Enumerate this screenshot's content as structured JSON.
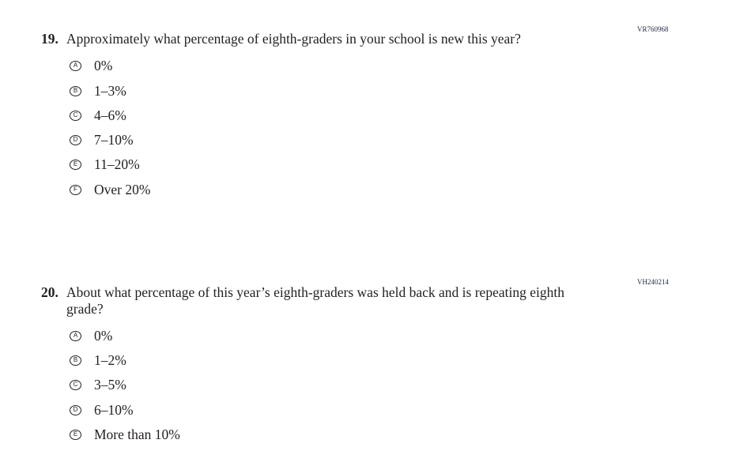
{
  "questions": [
    {
      "number": "19.",
      "code": "VR760968",
      "text": "Approximately what percentage of eighth-graders in your school is new this year?",
      "options": [
        {
          "letter": "A",
          "label": "0%"
        },
        {
          "letter": "B",
          "label": "1–3%"
        },
        {
          "letter": "C",
          "label": "4–6%"
        },
        {
          "letter": "D",
          "label": "7–10%"
        },
        {
          "letter": "E",
          "label": "11–20%"
        },
        {
          "letter": "F",
          "label": "Over 20%"
        }
      ]
    },
    {
      "number": "20.",
      "code": "VH240214",
      "text": "About what percentage of this year’s eighth-graders was held back and is repeating eighth grade?",
      "options": [
        {
          "letter": "A",
          "label": "0%"
        },
        {
          "letter": "B",
          "label": "1–2%"
        },
        {
          "letter": "C",
          "label": "3–5%"
        },
        {
          "letter": "D",
          "label": "6–10%"
        },
        {
          "letter": "E",
          "label": "More than 10%"
        }
      ]
    }
  ]
}
